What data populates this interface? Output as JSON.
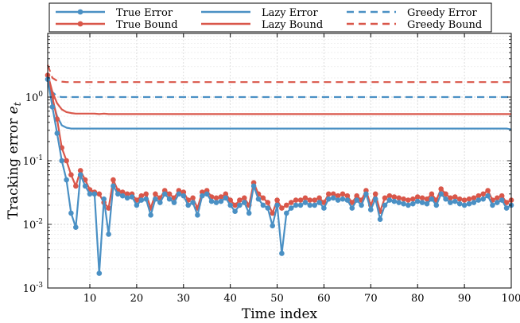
{
  "chart_data": {
    "type": "line",
    "title": "",
    "xlabel": "Time index",
    "ylabel": "Tracking error",
    "ylabel_symbol": "e",
    "ylabel_subscript": "t",
    "xlim": [
      1,
      100
    ],
    "ylim": [
      0.001,
      10
    ],
    "yscale": "log",
    "grid": true,
    "legend_placement": "top",
    "x_ticks": [
      10,
      20,
      30,
      40,
      50,
      60,
      70,
      80,
      90,
      100
    ],
    "x_tick_labels": [
      "10",
      "20",
      "30",
      "40",
      "50",
      "60",
      "70",
      "80",
      "90",
      "100"
    ],
    "y_ticks": [
      0.001,
      0.01,
      0.1,
      1
    ],
    "y_tick_bases": [
      "10",
      "10",
      "10",
      "10"
    ],
    "y_tick_exponents": [
      "-3",
      "-2",
      "-1",
      "0"
    ],
    "series": [
      {
        "name": "True Error",
        "color": "#4a90c4",
        "dash": "solid",
        "markers": true,
        "values": [
          1.9,
          0.7,
          0.27,
          0.1,
          0.05,
          0.015,
          0.009,
          0.06,
          0.04,
          0.03,
          0.03,
          0.0017,
          0.025,
          0.007,
          0.04,
          0.03,
          0.028,
          0.026,
          0.027,
          0.02,
          0.024,
          0.025,
          0.014,
          0.025,
          0.022,
          0.03,
          0.025,
          0.022,
          0.03,
          0.028,
          0.02,
          0.022,
          0.014,
          0.028,
          0.03,
          0.023,
          0.022,
          0.023,
          0.026,
          0.02,
          0.016,
          0.02,
          0.022,
          0.015,
          0.04,
          0.025,
          0.02,
          0.018,
          0.0095,
          0.02,
          0.0035,
          0.015,
          0.018,
          0.02,
          0.02,
          0.022,
          0.02,
          0.02,
          0.022,
          0.018,
          0.025,
          0.026,
          0.024,
          0.025,
          0.024,
          0.018,
          0.024,
          0.02,
          0.03,
          0.017,
          0.025,
          0.012,
          0.02,
          0.024,
          0.023,
          0.022,
          0.021,
          0.02,
          0.021,
          0.023,
          0.022,
          0.021,
          0.025,
          0.02,
          0.03,
          0.025,
          0.022,
          0.023,
          0.021,
          0.02,
          0.021,
          0.022,
          0.024,
          0.025,
          0.028,
          0.02,
          0.022,
          0.024,
          0.018,
          0.02
        ]
      },
      {
        "name": "True Bound",
        "color": "#d9574a",
        "dash": "solid",
        "markers": true,
        "values": [
          2.2,
          1.0,
          0.45,
          0.16,
          0.1,
          0.06,
          0.04,
          0.07,
          0.05,
          0.035,
          0.032,
          0.03,
          0.022,
          0.018,
          0.05,
          0.034,
          0.032,
          0.03,
          0.03,
          0.024,
          0.028,
          0.03,
          0.018,
          0.03,
          0.026,
          0.034,
          0.03,
          0.026,
          0.034,
          0.032,
          0.024,
          0.026,
          0.018,
          0.032,
          0.034,
          0.027,
          0.026,
          0.027,
          0.03,
          0.024,
          0.02,
          0.024,
          0.026,
          0.02,
          0.045,
          0.03,
          0.026,
          0.022,
          0.015,
          0.024,
          0.018,
          0.02,
          0.022,
          0.024,
          0.024,
          0.026,
          0.024,
          0.024,
          0.026,
          0.022,
          0.03,
          0.03,
          0.028,
          0.03,
          0.028,
          0.022,
          0.028,
          0.024,
          0.034,
          0.02,
          0.03,
          0.016,
          0.026,
          0.028,
          0.027,
          0.026,
          0.025,
          0.024,
          0.025,
          0.027,
          0.026,
          0.025,
          0.03,
          0.024,
          0.036,
          0.03,
          0.026,
          0.027,
          0.025,
          0.024,
          0.025,
          0.026,
          0.028,
          0.03,
          0.034,
          0.024,
          0.026,
          0.028,
          0.022,
          0.024
        ]
      },
      {
        "name": "Lazy Error",
        "color": "#4a90c4",
        "dash": "solid",
        "markers": false,
        "values": [
          1.95,
          0.9,
          0.5,
          0.36,
          0.33,
          0.32,
          0.32,
          0.32,
          0.32,
          0.32,
          0.32,
          0.32,
          0.32,
          0.32,
          0.32,
          0.32,
          0.32,
          0.32,
          0.32,
          0.32,
          0.32,
          0.32,
          0.32,
          0.32,
          0.32,
          0.32,
          0.32,
          0.32,
          0.32,
          0.32,
          0.32,
          0.32,
          0.32,
          0.32,
          0.32,
          0.32,
          0.32,
          0.32,
          0.32,
          0.32,
          0.32,
          0.32,
          0.32,
          0.32,
          0.32,
          0.32,
          0.32,
          0.32,
          0.32,
          0.32,
          0.32,
          0.32,
          0.32,
          0.32,
          0.32,
          0.32,
          0.32,
          0.32,
          0.32,
          0.32,
          0.32,
          0.32,
          0.32,
          0.32,
          0.32,
          0.32,
          0.32,
          0.32,
          0.32,
          0.32,
          0.32,
          0.32,
          0.32,
          0.32,
          0.32,
          0.32,
          0.32,
          0.32,
          0.32,
          0.32,
          0.32,
          0.32,
          0.32,
          0.32,
          0.32,
          0.32,
          0.32,
          0.32,
          0.32,
          0.32,
          0.32,
          0.32,
          0.32,
          0.32,
          0.32,
          0.32,
          0.32,
          0.32,
          0.32,
          0.31
        ]
      },
      {
        "name": "Lazy Bound",
        "color": "#d9574a",
        "dash": "solid",
        "markers": false,
        "values": [
          2.3,
          1.2,
          0.8,
          0.64,
          0.58,
          0.56,
          0.55,
          0.55,
          0.55,
          0.55,
          0.55,
          0.54,
          0.55,
          0.54,
          0.54,
          0.54,
          0.54,
          0.54,
          0.54,
          0.54,
          0.54,
          0.54,
          0.54,
          0.54,
          0.54,
          0.54,
          0.54,
          0.54,
          0.54,
          0.54,
          0.54,
          0.54,
          0.54,
          0.54,
          0.54,
          0.54,
          0.54,
          0.54,
          0.54,
          0.54,
          0.54,
          0.54,
          0.54,
          0.54,
          0.54,
          0.54,
          0.54,
          0.54,
          0.54,
          0.54,
          0.54,
          0.54,
          0.54,
          0.54,
          0.54,
          0.54,
          0.54,
          0.54,
          0.54,
          0.54,
          0.54,
          0.54,
          0.54,
          0.54,
          0.54,
          0.54,
          0.54,
          0.54,
          0.54,
          0.54,
          0.54,
          0.54,
          0.54,
          0.54,
          0.54,
          0.54,
          0.54,
          0.54,
          0.54,
          0.54,
          0.54,
          0.54,
          0.54,
          0.54,
          0.54,
          0.54,
          0.54,
          0.54,
          0.54,
          0.54,
          0.54,
          0.54,
          0.54,
          0.54,
          0.54,
          0.54,
          0.54,
          0.54,
          0.54,
          0.54
        ]
      },
      {
        "name": "Greedy Error",
        "color": "#4a90c4",
        "dash": "dashed",
        "markers": false,
        "values": [
          2.0,
          1.2,
          1.03,
          1.0,
          1.0,
          1.0,
          1.0,
          1.0,
          1.0,
          1.0,
          1.0,
          1.0,
          1.0,
          1.0,
          1.0,
          1.0,
          1.0,
          1.0,
          1.0,
          1.0,
          1.0,
          1.0,
          1.0,
          1.0,
          1.0,
          1.0,
          1.0,
          1.0,
          1.0,
          1.0,
          1.0,
          1.0,
          1.0,
          1.0,
          1.0,
          1.0,
          1.0,
          1.0,
          1.0,
          1.0,
          1.0,
          1.0,
          1.0,
          1.0,
          1.0,
          1.0,
          1.0,
          1.0,
          1.0,
          1.0,
          1.0,
          1.0,
          1.0,
          1.0,
          1.0,
          1.0,
          1.0,
          1.0,
          1.0,
          1.0,
          1.0,
          1.0,
          1.0,
          1.0,
          1.0,
          1.0,
          1.0,
          1.0,
          1.0,
          1.0,
          1.0,
          1.0,
          1.0,
          1.0,
          1.0,
          1.0,
          1.0,
          1.0,
          1.0,
          1.0,
          1.0,
          1.0,
          1.0,
          1.0,
          1.0,
          1.0,
          1.0,
          1.0,
          1.0,
          1.0,
          1.0,
          1.0,
          1.0,
          1.0,
          1.0,
          1.0,
          1.0,
          1.0,
          1.0,
          1.0
        ]
      },
      {
        "name": "Greedy Bound",
        "color": "#d9574a",
        "dash": "dashed",
        "markers": false,
        "values": [
          3.2,
          2.0,
          1.8,
          1.75,
          1.72,
          1.72,
          1.72,
          1.72,
          1.72,
          1.72,
          1.72,
          1.72,
          1.72,
          1.72,
          1.72,
          1.72,
          1.72,
          1.72,
          1.72,
          1.72,
          1.72,
          1.72,
          1.72,
          1.72,
          1.72,
          1.72,
          1.72,
          1.72,
          1.72,
          1.72,
          1.72,
          1.72,
          1.72,
          1.72,
          1.72,
          1.72,
          1.72,
          1.72,
          1.72,
          1.72,
          1.72,
          1.72,
          1.72,
          1.72,
          1.72,
          1.72,
          1.72,
          1.72,
          1.72,
          1.72,
          1.72,
          1.72,
          1.72,
          1.72,
          1.72,
          1.72,
          1.72,
          1.72,
          1.72,
          1.72,
          1.72,
          1.72,
          1.72,
          1.72,
          1.72,
          1.72,
          1.72,
          1.72,
          1.72,
          1.72,
          1.72,
          1.72,
          1.72,
          1.72,
          1.72,
          1.72,
          1.72,
          1.72,
          1.72,
          1.72,
          1.72,
          1.72,
          1.72,
          1.72,
          1.72,
          1.72,
          1.72,
          1.72,
          1.72,
          1.72,
          1.72,
          1.72,
          1.72,
          1.72,
          1.72,
          1.72,
          1.72,
          1.72,
          1.72,
          1.72
        ]
      }
    ]
  }
}
